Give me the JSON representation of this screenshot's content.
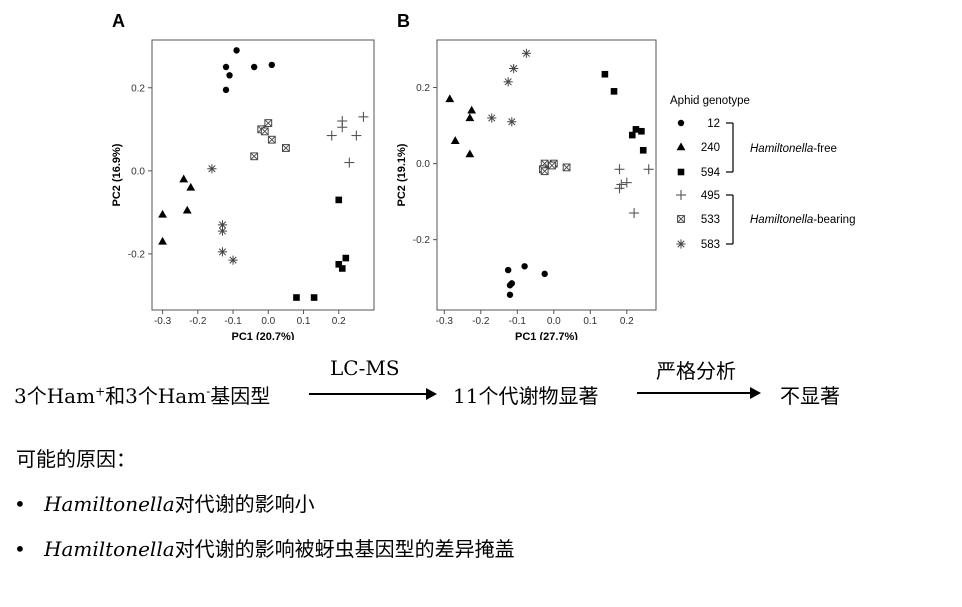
{
  "chart_data": [
    {
      "type": "scatter",
      "panel": "A",
      "xlabel": "PC1 (20.7%)",
      "ylabel": "PC2 (16.9%)",
      "xlim": [
        -0.33,
        0.3
      ],
      "ylim": [
        -0.335,
        0.315
      ],
      "xticks": [
        -0.3,
        -0.2,
        -0.1,
        0.0,
        0.1,
        0.2
      ],
      "xtick_labels": [
        "-0.3",
        "-0.2",
        "-0.1",
        "0.0",
        "0.1",
        "0.2"
      ],
      "yticks": [
        -0.2,
        0.0,
        0.2
      ],
      "ytick_labels": [
        "-0.2",
        "0.0",
        "0.2"
      ],
      "grid": false,
      "series": [
        {
          "name": "12",
          "marker": "circle",
          "points": [
            [
              -0.09,
              0.29
            ],
            [
              -0.12,
              0.25
            ],
            [
              -0.11,
              0.23
            ],
            [
              -0.12,
              0.195
            ],
            [
              -0.04,
              0.25
            ],
            [
              0.01,
              0.255
            ]
          ]
        },
        {
          "name": "240",
          "marker": "triangle",
          "points": [
            [
              -0.24,
              -0.02
            ],
            [
              -0.22,
              -0.04
            ],
            [
              -0.3,
              -0.105
            ],
            [
              -0.23,
              -0.095
            ],
            [
              -0.3,
              -0.17
            ]
          ]
        },
        {
          "name": "594",
          "marker": "square",
          "points": [
            [
              0.2,
              -0.07
            ],
            [
              0.2,
              -0.225
            ],
            [
              0.22,
              -0.21
            ],
            [
              0.21,
              -0.235
            ],
            [
              0.08,
              -0.305
            ],
            [
              0.13,
              -0.305
            ]
          ]
        },
        {
          "name": "495",
          "marker": "plus",
          "points": [
            [
              0.27,
              0.13
            ],
            [
              0.21,
              0.12
            ],
            [
              0.21,
              0.105
            ],
            [
              0.18,
              0.085
            ],
            [
              0.25,
              0.085
            ],
            [
              0.23,
              0.02
            ]
          ]
        },
        {
          "name": "533",
          "marker": "boxcross",
          "points": [
            [
              -0.02,
              0.1
            ],
            [
              0.0,
              0.115
            ],
            [
              -0.01,
              0.095
            ],
            [
              0.01,
              0.075
            ],
            [
              0.05,
              0.055
            ],
            [
              -0.04,
              0.035
            ]
          ]
        },
        {
          "name": "583",
          "marker": "asterisk",
          "points": [
            [
              -0.16,
              0.005
            ],
            [
              -0.13,
              -0.13
            ],
            [
              -0.13,
              -0.145
            ],
            [
              -0.13,
              -0.195
            ],
            [
              -0.1,
              -0.215
            ]
          ]
        }
      ]
    },
    {
      "type": "scatter",
      "panel": "B",
      "xlabel": "PC1 (27.7%)",
      "ylabel": "PC2 (19.1%)",
      "xlim": [
        -0.32,
        0.28
      ],
      "ylim": [
        -0.385,
        0.325
      ],
      "xticks": [
        -0.3,
        -0.2,
        -0.1,
        0.0,
        0.1,
        0.2
      ],
      "xtick_labels": [
        "-0.3",
        "-0.2",
        "-0.1",
        "0.0",
        "0.1",
        "0.2"
      ],
      "yticks": [
        -0.2,
        0.0,
        0.2
      ],
      "ytick_labels": [
        "-0.2",
        "0.0",
        "0.2"
      ],
      "grid": false,
      "series": [
        {
          "name": "12",
          "marker": "circle",
          "points": [
            [
              -0.125,
              -0.28
            ],
            [
              -0.08,
              -0.27
            ],
            [
              -0.025,
              -0.29
            ],
            [
              -0.115,
              -0.315
            ],
            [
              -0.12,
              -0.32
            ],
            [
              -0.12,
              -0.345
            ]
          ]
        },
        {
          "name": "240",
          "marker": "triangle",
          "points": [
            [
              -0.285,
              0.17
            ],
            [
              -0.225,
              0.14
            ],
            [
              -0.23,
              0.12
            ],
            [
              -0.27,
              0.06
            ],
            [
              -0.23,
              0.025
            ]
          ]
        },
        {
          "name": "594",
          "marker": "square",
          "points": [
            [
              0.14,
              0.235
            ],
            [
              0.165,
              0.19
            ],
            [
              0.225,
              0.09
            ],
            [
              0.24,
              0.085
            ],
            [
              0.215,
              0.075
            ],
            [
              0.245,
              0.035
            ]
          ]
        },
        {
          "name": "495",
          "marker": "plus",
          "points": [
            [
              0.18,
              -0.015
            ],
            [
              0.26,
              -0.015
            ],
            [
              0.2,
              -0.05
            ],
            [
              0.185,
              -0.055
            ],
            [
              0.18,
              -0.065
            ],
            [
              0.22,
              -0.13
            ]
          ]
        },
        {
          "name": "533",
          "marker": "boxcross",
          "points": [
            [
              -0.025,
              0.0
            ],
            [
              0.0,
              0.0
            ],
            [
              -0.005,
              -0.005
            ],
            [
              0.035,
              -0.01
            ],
            [
              -0.03,
              -0.015
            ],
            [
              -0.025,
              -0.02
            ]
          ]
        },
        {
          "name": "583",
          "marker": "asterisk",
          "points": [
            [
              -0.075,
              0.29
            ],
            [
              -0.11,
              0.25
            ],
            [
              -0.125,
              0.215
            ],
            [
              -0.17,
              0.12
            ],
            [
              -0.115,
              0.11
            ]
          ]
        }
      ]
    }
  ],
  "panel_labels": {
    "a": "A",
    "b": "B"
  },
  "legend": {
    "title": "Aphid genotype",
    "items": [
      {
        "label": "12",
        "marker": "circle"
      },
      {
        "label": "240",
        "marker": "triangle"
      },
      {
        "label": "594",
        "marker": "square"
      },
      {
        "label": "495",
        "marker": "plus"
      },
      {
        "label": "533",
        "marker": "boxcross"
      },
      {
        "label": "583",
        "marker": "asterisk"
      }
    ],
    "groups": [
      {
        "italic": "Hamiltonella",
        "rest": "-free"
      },
      {
        "italic": "Hamiltonella",
        "rest": "-bearing"
      }
    ]
  },
  "flow": {
    "start": "3个Ham",
    "start_sup1": "+",
    "start_mid": "和3个Ham",
    "start_sup2": "-",
    "start_end": "基因型",
    "arrow1": "LC-MS",
    "middle": "11个代谢物显著",
    "arrow2": "严格分析",
    "end": "不显著"
  },
  "reasons": {
    "title": "可能的原因：",
    "items": [
      {
        "italic": "Hamiltonella",
        "text": "对代谢的影响小"
      },
      {
        "italic": "Hamiltonella",
        "text": "对代谢的影响被蚜虫基因型的差异掩盖"
      }
    ]
  }
}
